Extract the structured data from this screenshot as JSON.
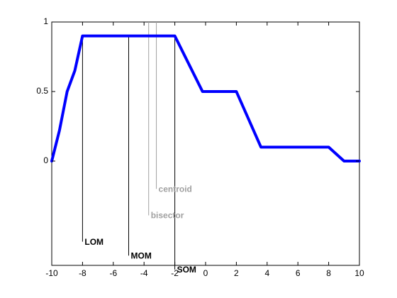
{
  "chart_data": {
    "type": "line",
    "title": "",
    "xlabel": "",
    "ylabel": "",
    "xlim": [
      -10,
      10
    ],
    "ylim": [
      -0.75,
      1
    ],
    "grid": false,
    "x_ticks": [
      -10,
      -8,
      -6,
      -4,
      -2,
      0,
      2,
      4,
      6,
      8,
      10
    ],
    "x_tick_labels": [
      "-10",
      "-8",
      "-6",
      "-4",
      "-2",
      "0",
      "2",
      "4",
      "6",
      "8",
      "10"
    ],
    "y_ticks": [
      0,
      0.5,
      1
    ],
    "y_tick_labels": [
      "0",
      "0.5",
      "1"
    ],
    "series": [
      {
        "color": "#0000ff",
        "x": [
          -10,
          -9.5,
          -9,
          -8.5,
          -8,
          -2,
          -0.2,
          2,
          3.6,
          8,
          9,
          10
        ],
        "y": [
          0,
          0.22,
          0.5,
          0.65,
          0.9,
          0.9,
          0.5,
          0.5,
          0.1,
          0.1,
          0,
          0
        ]
      }
    ],
    "annotations": [
      {
        "label": "LOM",
        "x": -8,
        "y_top": 0.9,
        "y_bottom": -0.58,
        "color": "#000000"
      },
      {
        "label": "MOM",
        "x": -5,
        "y_top": 0.9,
        "y_bottom": -0.68,
        "color": "#000000"
      },
      {
        "label": "SOM",
        "x": -2,
        "y_top": 0.9,
        "y_bottom": -0.78,
        "color": "#000000"
      },
      {
        "label": "bisector",
        "x": -3.7,
        "y_top": 1,
        "y_bottom": -0.39,
        "color": "#a0a0a0"
      },
      {
        "label": "centroid",
        "x": -3.2,
        "y_top": 1,
        "y_bottom": -0.2,
        "color": "#a0a0a0"
      }
    ]
  }
}
